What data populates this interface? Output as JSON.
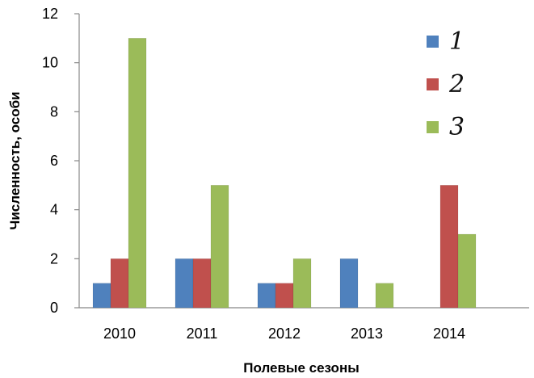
{
  "chart_data": {
    "type": "bar",
    "categories": [
      "2010",
      "2011",
      "2012",
      "2013",
      "2014"
    ],
    "series": [
      {
        "name": "1",
        "color": "#4f81bd",
        "values": [
          1,
          2,
          1,
          2,
          0
        ]
      },
      {
        "name": "2",
        "color": "#c0504d",
        "values": [
          2,
          2,
          1,
          0,
          5
        ]
      },
      {
        "name": "3",
        "color": "#9bbb59",
        "values": [
          11,
          5,
          2,
          1,
          3
        ]
      }
    ],
    "xlabel": "Полевые сезоны",
    "ylabel": "Численность, особи",
    "ylim": [
      0,
      12
    ],
    "yticks": [
      0,
      2,
      4,
      6,
      8,
      10,
      12
    ],
    "grid": false,
    "legend_position": "top-right"
  }
}
